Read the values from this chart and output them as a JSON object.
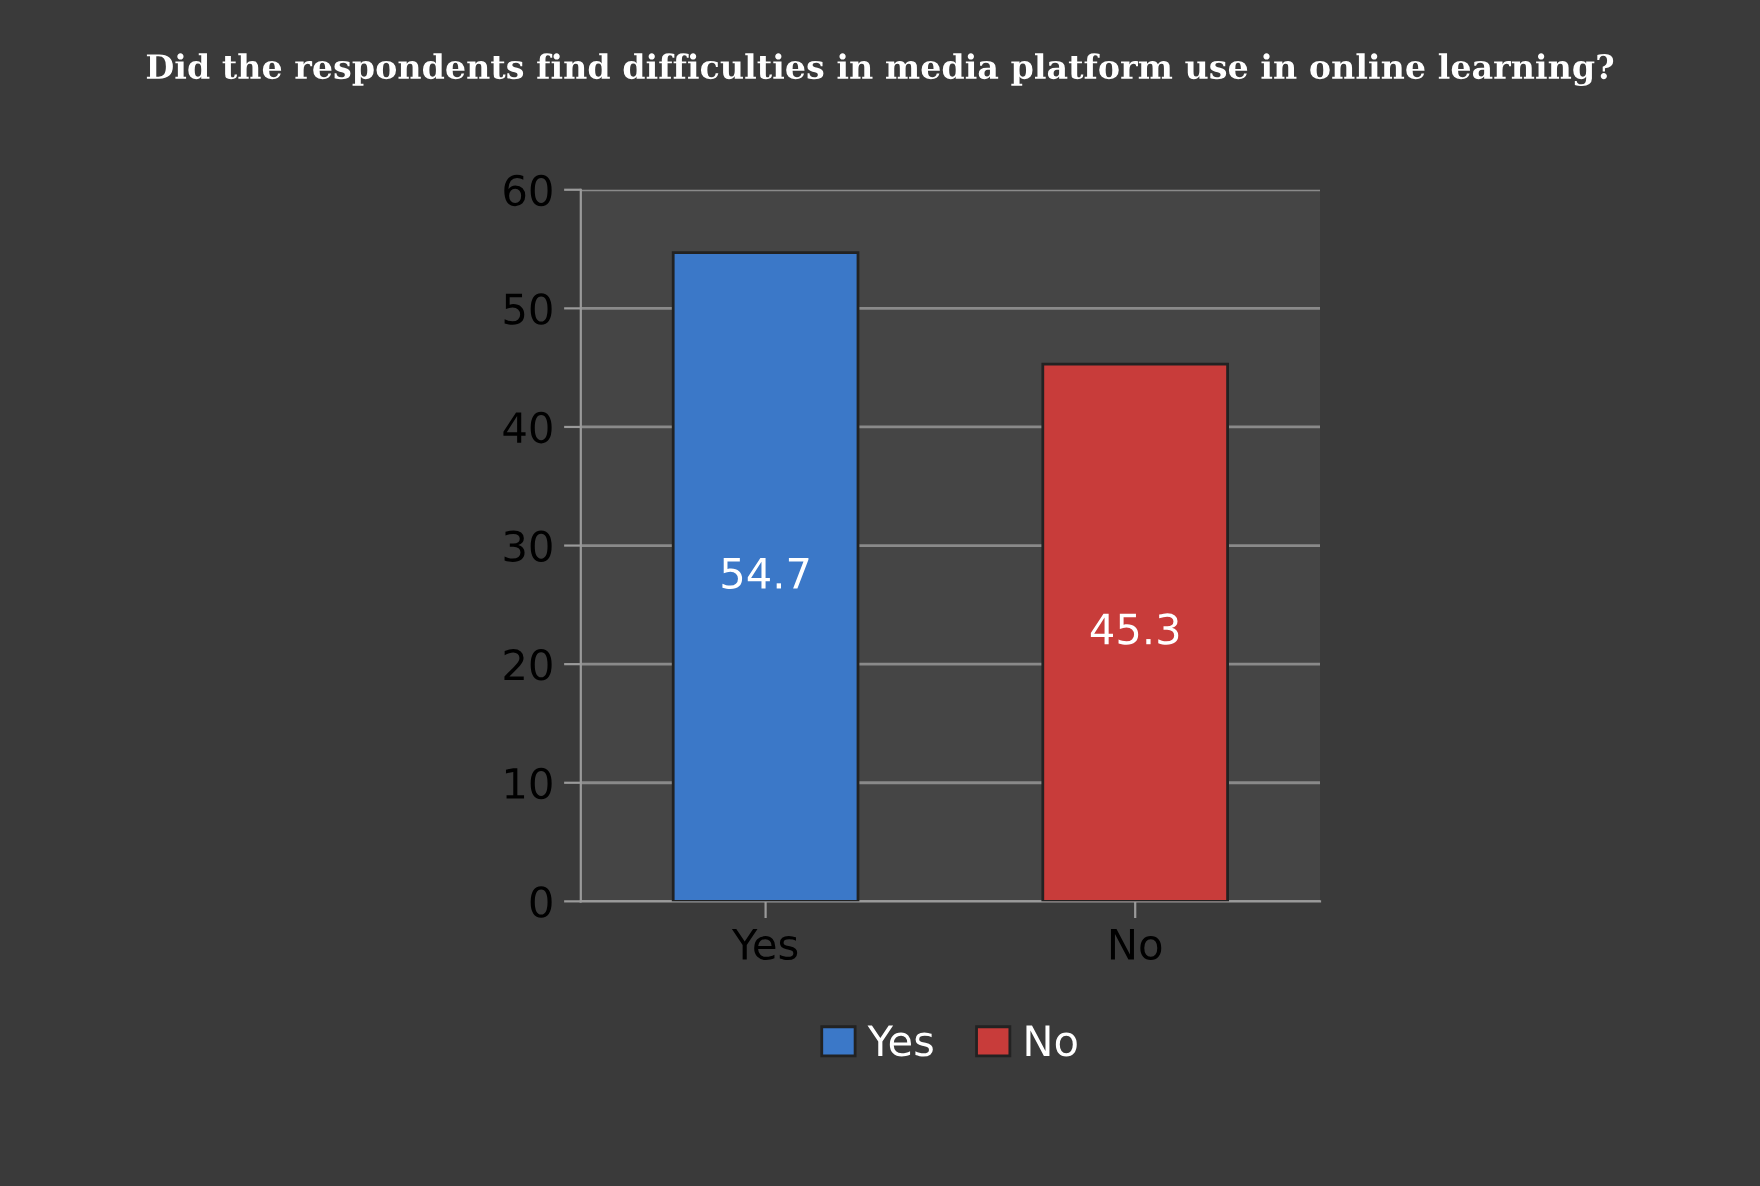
{
  "chart_data": {
    "type": "bar",
    "title": "Did the respondents find difficulties in media platform use in online learning?",
    "categories": [
      "Yes",
      "No"
    ],
    "series": [
      {
        "name": "Yes",
        "color": "#3b78c8",
        "values": [
          54.7,
          null
        ]
      },
      {
        "name": "No",
        "color": "#c83c3a",
        "values": [
          null,
          45.3
        ]
      }
    ],
    "ylim": [
      0,
      60
    ],
    "yticks": [
      0,
      10,
      20,
      30,
      40,
      50,
      60
    ],
    "grid": "y",
    "data_labels": true,
    "legend": "bottom"
  }
}
